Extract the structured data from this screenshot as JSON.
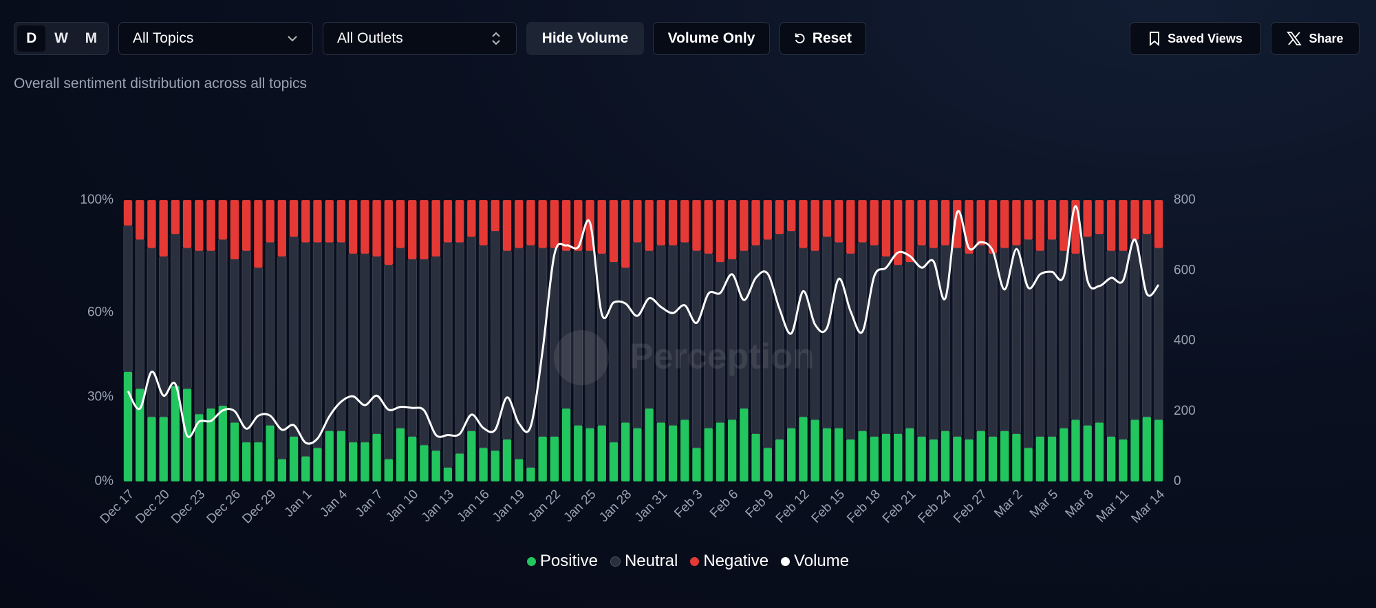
{
  "toolbar": {
    "granularity": [
      "D",
      "W",
      "M"
    ],
    "topic_select": "All Topics",
    "outlet_select": "All Outlets",
    "buttons": [
      "Hide Volume",
      "Volume Only",
      "Reset"
    ],
    "saved_views": "Saved Views",
    "share": "Share"
  },
  "subtitle": "Overall sentiment distribution across all topics",
  "watermark": "Perception",
  "chart_data": {
    "type": "bar",
    "stacked": true,
    "grid": false,
    "categories": [
      "Dec 17",
      null,
      null,
      "Dec 20",
      null,
      null,
      "Dec 23",
      null,
      null,
      "Dec 26",
      null,
      null,
      "Dec 29",
      null,
      null,
      "Jan 1",
      null,
      null,
      "Jan 4",
      null,
      null,
      "Jan 7",
      null,
      null,
      "Jan 10",
      null,
      null,
      "Jan 13",
      null,
      null,
      "Jan 16",
      null,
      null,
      "Jan 19",
      null,
      null,
      "Jan 22",
      null,
      null,
      "Jan 25",
      null,
      null,
      "Jan 28",
      null,
      null,
      "Jan 31",
      null,
      null,
      "Feb 3",
      null,
      null,
      "Feb 6",
      null,
      null,
      "Feb 9",
      null,
      null,
      "Feb 12",
      null,
      null,
      "Feb 15",
      null,
      null,
      "Feb 18",
      null,
      null,
      "Feb 21",
      null,
      null,
      "Feb 24",
      null,
      null,
      "Feb 27",
      null,
      null,
      "Mar 2",
      null,
      null,
      "Mar 5",
      null,
      null,
      "Mar 8",
      null,
      null,
      "Mar 11",
      null,
      null,
      "Mar 14"
    ],
    "series": [
      {
        "name": "Positive",
        "color": "#22c55e",
        "values": [
          39,
          33,
          23,
          23,
          34,
          33,
          24,
          26,
          27,
          21,
          14,
          14,
          20,
          8,
          16,
          9,
          12,
          18,
          18,
          14,
          14,
          17,
          8,
          19,
          16,
          13,
          11,
          5,
          10,
          18,
          12,
          11,
          15,
          8,
          5,
          16,
          16,
          26,
          20,
          19,
          20,
          14,
          21,
          19,
          26,
          21,
          20,
          22,
          12,
          19,
          21,
          22,
          26,
          17,
          12,
          15,
          19,
          23,
          22,
          19,
          19,
          15,
          18,
          16,
          17,
          17,
          19,
          16,
          15,
          18,
          16,
          15,
          18,
          16,
          18,
          17,
          12,
          16,
          16,
          19,
          22,
          20,
          21,
          16,
          15,
          22,
          23,
          22
        ]
      },
      {
        "name": "Neutral",
        "color": "#2a2f3d",
        "values": [
          52,
          53,
          60,
          57,
          54,
          50,
          58,
          56,
          59,
          58,
          68,
          62,
          65,
          72,
          71,
          76,
          73,
          67,
          67,
          67,
          67,
          63,
          69,
          64,
          63,
          66,
          69,
          80,
          75,
          69,
          72,
          78,
          67,
          75,
          79,
          67,
          67,
          56,
          62,
          63,
          61,
          64,
          55,
          66,
          56,
          63,
          64,
          63,
          70,
          62,
          57,
          57,
          56,
          67,
          74,
          73,
          70,
          60,
          60,
          68,
          66,
          66,
          67,
          68,
          63,
          60,
          59,
          68,
          68,
          66,
          67,
          66,
          66,
          65,
          65,
          67,
          74,
          66,
          70,
          63,
          59,
          67,
          67,
          66,
          67,
          64,
          65,
          61
        ]
      },
      {
        "name": "Negative",
        "color": "#e53935",
        "values": [
          9,
          14,
          17,
          20,
          12,
          17,
          18,
          18,
          14,
          21,
          18,
          24,
          15,
          20,
          13,
          15,
          15,
          15,
          15,
          19,
          19,
          20,
          23,
          17,
          21,
          21,
          20,
          15,
          15,
          13,
          16,
          11,
          18,
          17,
          16,
          17,
          17,
          18,
          18,
          18,
          19,
          22,
          24,
          15,
          18,
          16,
          16,
          15,
          18,
          19,
          22,
          21,
          18,
          16,
          14,
          12,
          11,
          17,
          18,
          13,
          15,
          19,
          15,
          16,
          20,
          23,
          22,
          16,
          17,
          16,
          17,
          19,
          16,
          19,
          17,
          16,
          14,
          18,
          14,
          18,
          19,
          13,
          12,
          18,
          18,
          14,
          12,
          17
        ]
      },
      {
        "name": "Volume",
        "color": "#ffffff",
        "type": "line",
        "axis": "y2",
        "values": [
          257,
          207,
          312,
          244,
          277,
          130,
          170,
          172,
          202,
          200,
          150,
          187,
          187,
          147,
          160,
          110,
          122,
          185,
          227,
          242,
          217,
          244,
          204,
          212,
          209,
          202,
          132,
          132,
          135,
          190,
          152,
          147,
          239,
          165,
          157,
          372,
          646,
          671,
          666,
          736,
          476,
          509,
          506,
          471,
          521,
          496,
          479,
          501,
          451,
          534,
          536,
          589,
          516,
          579,
          591,
          491,
          421,
          541,
          446,
          436,
          576,
          484,
          426,
          584,
          608,
          651,
          641,
          608,
          626,
          521,
          766,
          663,
          681,
          656,
          546,
          661,
          551,
          589,
          596,
          584,
          783,
          571,
          556,
          579,
          571,
          688,
          534,
          559
        ]
      }
    ],
    "ylim": [
      0,
      100
    ],
    "yticks": [
      {
        "value": 0,
        "label": "0%"
      },
      {
        "value": 30,
        "label": "30%"
      },
      {
        "value": 60,
        "label": "60%"
      },
      {
        "value": 100,
        "label": "100%"
      }
    ],
    "y2lim": [
      0,
      800
    ],
    "y2ticks": [
      0,
      200,
      400,
      600,
      800
    ]
  }
}
